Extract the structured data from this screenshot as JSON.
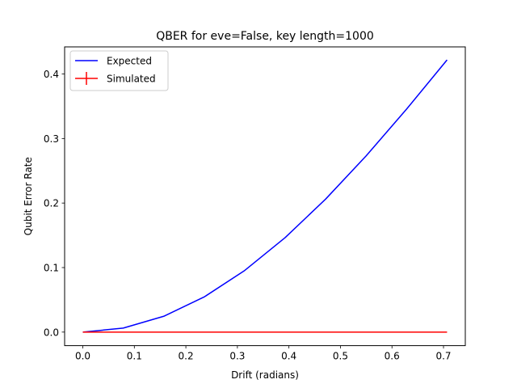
{
  "chart_data": {
    "type": "line",
    "title": "QBER for eve=False, key length=1000",
    "xlabel": "Drift (radians)",
    "ylabel": "Qubit Error Rate",
    "xlim": [
      -0.0353,
      0.7423
    ],
    "ylim": [
      -0.021,
      0.442
    ],
    "xticks": [
      0.0,
      0.1,
      0.2,
      0.3,
      0.4,
      0.5,
      0.6,
      0.7
    ],
    "xtick_labels": [
      "0.0",
      "0.1",
      "0.2",
      "0.3",
      "0.4",
      "0.5",
      "0.6",
      "0.7"
    ],
    "yticks": [
      0.0,
      0.1,
      0.2,
      0.3,
      0.4
    ],
    "ytick_labels": [
      "0.0",
      "0.1",
      "0.2",
      "0.3",
      "0.4"
    ],
    "grid": false,
    "legend_position": "top-left",
    "series": [
      {
        "name": "Expected",
        "color": "#0000ff",
        "style": "line",
        "x": [
          0.0,
          0.0785,
          0.1571,
          0.2356,
          0.3142,
          0.3927,
          0.4712,
          0.5498,
          0.6283,
          0.7069
        ],
        "y": [
          0.0,
          0.0062,
          0.0245,
          0.0545,
          0.0955,
          0.1464,
          0.2061,
          0.273,
          0.3455,
          0.4218
        ]
      },
      {
        "name": "Simulated",
        "color": "#ff0000",
        "style": "errorbar",
        "x": [
          0.0,
          0.0785,
          0.1571,
          0.2356,
          0.3142,
          0.3927,
          0.4712,
          0.5498,
          0.6283,
          0.7069
        ],
        "y": [
          0.0,
          0.0,
          0.0,
          0.0,
          0.0,
          0.0,
          0.0,
          0.0,
          0.0,
          0.0
        ]
      }
    ]
  }
}
